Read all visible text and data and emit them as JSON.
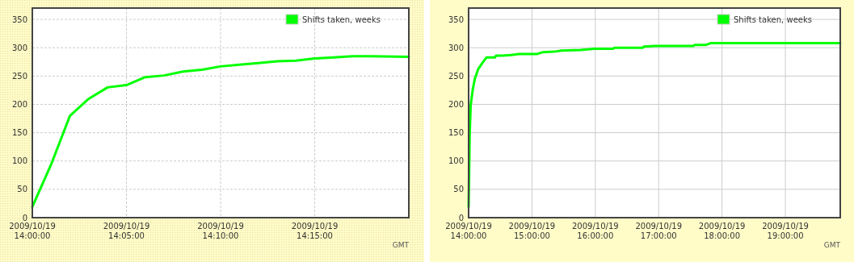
{
  "chart_data": [
    {
      "type": "line",
      "xlim": [
        "2009-10-19T14:00",
        "2009-10-19T14:20"
      ],
      "xticks": [
        {
          "value": "2009-10-19T14:00",
          "label": "2009/10/19\n14:00:00"
        },
        {
          "value": "2009-10-19T14:05",
          "label": "2009/10/19\n14:05:00"
        },
        {
          "value": "2009-10-19T14:10",
          "label": "2009/10/19\n14:10:00"
        },
        {
          "value": "2009-10-19T14:15",
          "label": "2009/10/19\n14:15:00"
        }
      ],
      "ylim": [
        0,
        370
      ],
      "yticks": [
        0,
        50,
        100,
        150,
        200,
        250,
        300,
        350
      ],
      "grid": true,
      "legend": "top right",
      "annotations": [
        "GMT"
      ],
      "series": [
        {
          "name": "Shifts taken, weeks",
          "color": "#00ff00",
          "x": [
            "2009-10-19T14:00",
            "2009-10-19T14:01",
            "2009-10-19T14:02",
            "2009-10-19T14:03",
            "2009-10-19T14:04",
            "2009-10-19T14:05",
            "2009-10-19T14:06",
            "2009-10-19T14:07",
            "2009-10-19T14:08",
            "2009-10-19T14:09",
            "2009-10-19T14:10",
            "2009-10-19T14:11",
            "2009-10-19T14:12",
            "2009-10-19T14:13",
            "2009-10-19T14:14",
            "2009-10-19T14:15",
            "2009-10-19T14:16",
            "2009-10-19T14:17",
            "2009-10-19T14:18",
            "2009-10-19T14:20"
          ],
          "values": [
            19,
            94,
            180,
            210,
            230,
            234,
            248,
            251,
            258,
            261,
            267,
            270,
            273,
            276,
            277,
            281,
            283,
            285,
            285,
            284
          ]
        }
      ]
    },
    {
      "type": "line",
      "xlim": [
        "2009-10-19T14:00",
        "2009-10-19T19:52"
      ],
      "xticks": [
        {
          "value": "2009-10-19T14:00",
          "label": "2009/10/19\n14:00:00"
        },
        {
          "value": "2009-10-19T15:00",
          "label": "2009/10/19\n15:00:00"
        },
        {
          "value": "2009-10-19T16:00",
          "label": "2009/10/19\n16:00:00"
        },
        {
          "value": "2009-10-19T17:00",
          "label": "2009/10/19\n17:00:00"
        },
        {
          "value": "2009-10-19T18:00",
          "label": "2009/10/19\n18:00:00"
        },
        {
          "value": "2009-10-19T19:00",
          "label": "2009/10/19\n19:00:00"
        }
      ],
      "ylim": [
        0,
        370
      ],
      "yticks": [
        0,
        50,
        100,
        150,
        200,
        250,
        300,
        350
      ],
      "grid": true,
      "legend": "top right",
      "annotations": [
        "GMT"
      ],
      "series": [
        {
          "name": "Shifts taken, weeks",
          "color": "#00ff00",
          "x": [
            "2009-10-19T14:00",
            "2009-10-19T14:01",
            "2009-10-19T14:02",
            "2009-10-19T14:04",
            "2009-10-19T14:06",
            "2009-10-19T14:09",
            "2009-10-19T14:13",
            "2009-10-19T14:17",
            "2009-10-19T14:25",
            "2009-10-19T14:26",
            "2009-10-19T14:32",
            "2009-10-19T14:40",
            "2009-10-19T14:48",
            "2009-10-19T15:05",
            "2009-10-19T15:10",
            "2009-10-19T15:21",
            "2009-10-19T15:28",
            "2009-10-19T15:46",
            "2009-10-19T15:59",
            "2009-10-19T16:17",
            "2009-10-19T16:18",
            "2009-10-19T16:45",
            "2009-10-19T16:46",
            "2009-10-19T16:57",
            "2009-10-19T17:33",
            "2009-10-19T17:34",
            "2009-10-19T17:45",
            "2009-10-19T17:49",
            "2009-10-19T19:52"
          ],
          "values": [
            19,
            147,
            199,
            227,
            246,
            262,
            273,
            283,
            283,
            286,
            286,
            287,
            289,
            289,
            292,
            293,
            295,
            296,
            298,
            298,
            300,
            300,
            302,
            303,
            303,
            305,
            305,
            308,
            308
          ]
        }
      ]
    }
  ]
}
